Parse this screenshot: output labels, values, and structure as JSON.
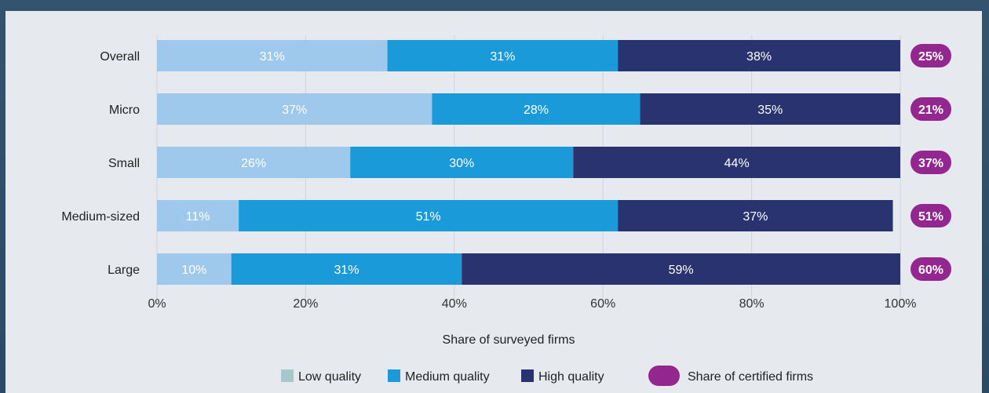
{
  "chart_data": {
    "type": "bar",
    "orientation": "horizontal",
    "stacked": true,
    "categories": [
      "Overall",
      "Micro",
      "Small",
      "Medium-sized",
      "Large"
    ],
    "series": [
      {
        "name": "Low quality",
        "values": [
          31,
          37,
          26,
          11,
          10
        ],
        "color": "#9ec8ec"
      },
      {
        "name": "Medium quality",
        "values": [
          31,
          28,
          30,
          51,
          31
        ],
        "color": "#1a9ad9"
      },
      {
        "name": "High quality",
        "values": [
          38,
          35,
          44,
          37,
          59
        ],
        "color": "#29336f"
      }
    ],
    "certified": {
      "name": "Share of certified firms",
      "values": [
        25,
        21,
        37,
        51,
        60
      ],
      "color": "#93278f"
    },
    "xlim": [
      0,
      100
    ],
    "xticks": [
      "0%",
      "20%",
      "40%",
      "60%",
      "80%",
      "100%"
    ],
    "xlabel": "Share of surveyed firms",
    "value_suffix": "%",
    "grid": true,
    "legend_position": "bottom",
    "legend_low_swatch_color": "#a6c8cc"
  }
}
